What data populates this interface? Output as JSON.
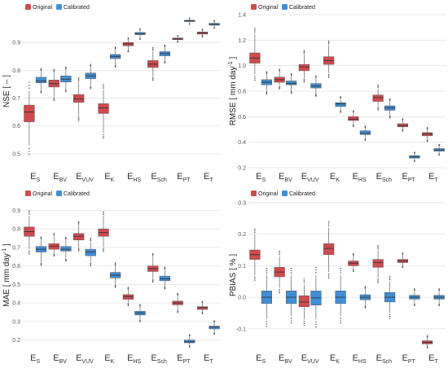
{
  "colors": {
    "original": "#d04a4e",
    "calibrated": "#3f8fd6",
    "grid": "#e3e3e3",
    "whisker": "#666666",
    "median": "#333333"
  },
  "categories": [
    {
      "main": "E",
      "sub": "S"
    },
    {
      "main": "E",
      "sub": "BV"
    },
    {
      "main": "E",
      "sub": "VUV"
    },
    {
      "main": "E",
      "sub": "K"
    },
    {
      "main": "E",
      "sub": "HS"
    },
    {
      "main": "E",
      "sub": "Sch"
    },
    {
      "main": "E",
      "sub": "PT"
    },
    {
      "main": "E",
      "sub": "T"
    }
  ],
  "chart_data": [
    {
      "type": "box",
      "ylabel_main": "NSE [ – ]",
      "ylabel_sup": "",
      "ylim": [
        0.45,
        1.0
      ],
      "yticks": [
        0.5,
        0.6,
        0.7,
        0.8,
        0.9
      ],
      "tick_labels": [
        "0.5",
        "0.6",
        "0.7",
        "0.8",
        "0.9"
      ],
      "legend": [
        "Original",
        "Calibrated"
      ],
      "legend_position": "top-left",
      "series": [
        {
          "name": "Original",
          "boxes": [
            [
              0.53,
              0.615,
              0.65,
              0.675,
              0.725
            ],
            [
              0.705,
              0.74,
              0.752,
              0.765,
              0.79
            ],
            [
              0.635,
              0.685,
              0.697,
              0.713,
              0.758
            ],
            [
              0.575,
              0.645,
              0.665,
              0.68,
              0.73
            ],
            [
              0.873,
              0.888,
              0.895,
              0.9,
              0.91
            ],
            [
              0.778,
              0.81,
              0.822,
              0.835,
              0.868
            ],
            [
              0.905,
              0.91,
              0.913,
              0.916,
              0.922
            ],
            [
              0.925,
              0.93,
              0.934,
              0.938,
              0.943
            ]
          ]
        },
        {
          "name": "Calibrated",
          "boxes": [
            [
              0.73,
              0.755,
              0.762,
              0.775,
              0.795
            ],
            [
              0.735,
              0.758,
              0.768,
              0.78,
              0.8
            ],
            [
              0.745,
              0.77,
              0.78,
              0.79,
              0.81
            ],
            [
              0.82,
              0.842,
              0.85,
              0.857,
              0.875
            ],
            [
              0.915,
              0.928,
              0.932,
              0.936,
              0.945
            ],
            [
              0.835,
              0.852,
              0.86,
              0.867,
              0.882
            ],
            [
              0.968,
              0.975,
              0.978,
              0.98,
              0.985
            ],
            [
              0.955,
              0.962,
              0.965,
              0.969,
              0.975
            ]
          ]
        }
      ]
    },
    {
      "type": "box",
      "ylabel_main": "RMSE [ mm day",
      "ylabel_sup": "-1",
      "ylabel_end": " ]",
      "ylim": [
        0.2,
        1.4
      ],
      "yticks": [
        0.2,
        0.4,
        0.6,
        0.8,
        1.0,
        1.2,
        1.4
      ],
      "tick_labels": [
        "0.2",
        "0.4",
        "0.6",
        "0.8",
        "1.0",
        "1.2",
        "1.4"
      ],
      "legend": [
        "Original",
        "Calibrated"
      ],
      "legend_position": "top-left",
      "series": [
        {
          "name": "Original",
          "boxes": [
            [
              0.93,
              1.02,
              1.06,
              1.1,
              1.25
            ],
            [
              0.84,
              0.87,
              0.89,
              0.91,
              0.95
            ],
            [
              0.9,
              0.96,
              0.99,
              1.01,
              1.09
            ],
            [
              0.94,
              1.01,
              1.04,
              1.07,
              1.16
            ],
            [
              0.54,
              0.57,
              0.58,
              0.6,
              0.63
            ],
            [
              0.68,
              0.72,
              0.75,
              0.77,
              0.82
            ],
            [
              0.5,
              0.52,
              0.53,
              0.545,
              0.57
            ],
            [
              0.42,
              0.45,
              0.465,
              0.475,
              0.5
            ]
          ]
        },
        {
          "name": "Calibrated",
          "boxes": [
            [
              0.8,
              0.85,
              0.87,
              0.89,
              0.93
            ],
            [
              0.8,
              0.85,
              0.86,
              0.88,
              0.92
            ],
            [
              0.78,
              0.825,
              0.84,
              0.86,
              0.9
            ],
            [
              0.65,
              0.68,
              0.7,
              0.71,
              0.74
            ],
            [
              0.43,
              0.46,
              0.47,
              0.49,
              0.51
            ],
            [
              0.61,
              0.65,
              0.67,
              0.685,
              0.72
            ],
            [
              0.26,
              0.275,
              0.285,
              0.295,
              0.31
            ],
            [
              0.31,
              0.33,
              0.34,
              0.35,
              0.37
            ]
          ]
        }
      ]
    },
    {
      "type": "box",
      "ylabel_main": "MAE [ mm day",
      "ylabel_sup": "-1",
      "ylabel_end": " ]",
      "ylim": [
        0.15,
        0.95
      ],
      "yticks": [
        0.2,
        0.3,
        0.4,
        0.5,
        0.6,
        0.7,
        0.8,
        0.9
      ],
      "tick_labels": [
        "0.2",
        "0.3",
        "0.4",
        "0.5",
        "0.6",
        "0.7",
        "0.8",
        "0.9"
      ],
      "legend": [
        "Original",
        "Calibrated"
      ],
      "legend_position": "top-left",
      "series": [
        {
          "name": "Original",
          "boxes": [
            [
              0.69,
              0.76,
              0.785,
              0.81,
              0.87
            ],
            [
              0.67,
              0.69,
              0.705,
              0.72,
              0.76
            ],
            [
              0.7,
              0.74,
              0.76,
              0.775,
              0.82
            ],
            [
              0.7,
              0.76,
              0.78,
              0.8,
              0.87
            ],
            [
              0.4,
              0.42,
              0.435,
              0.445,
              0.47
            ],
            [
              0.53,
              0.57,
              0.585,
              0.6,
              0.65
            ],
            [
              0.36,
              0.39,
              0.4,
              0.41,
              0.44
            ],
            [
              0.35,
              0.365,
              0.375,
              0.38,
              0.4
            ]
          ]
        },
        {
          "name": "Calibrated",
          "boxes": [
            [
              0.62,
              0.675,
              0.69,
              0.705,
              0.74
            ],
            [
              0.64,
              0.68,
              0.69,
              0.705,
              0.74
            ],
            [
              0.62,
              0.655,
              0.675,
              0.69,
              0.73
            ],
            [
              0.5,
              0.535,
              0.55,
              0.565,
              0.6
            ],
            [
              0.31,
              0.335,
              0.345,
              0.355,
              0.38
            ],
            [
              0.49,
              0.52,
              0.53,
              0.545,
              0.58
            ],
            [
              0.17,
              0.185,
              0.19,
              0.2,
              0.22
            ],
            [
              0.24,
              0.26,
              0.27,
              0.275,
              0.295
            ]
          ]
        }
      ]
    },
    {
      "type": "box",
      "ylabel_main": "PBIAS [ % ]",
      "ylabel_sup": "",
      "ylim": [
        -0.165,
        0.305
      ],
      "yticks": [
        -0.1,
        0.0,
        0.1,
        0.2,
        0.3
      ],
      "tick_labels": [
        "-0.1",
        "0.0",
        "0.1",
        "0.2",
        "0.3"
      ],
      "legend": [
        "Original",
        "Calibrated"
      ],
      "legend_position": "top-left",
      "series": [
        {
          "name": "Original",
          "boxes": [
            [
              0.07,
              0.12,
              0.135,
              0.15,
              0.2
            ],
            [
              0.03,
              0.065,
              0.08,
              0.095,
              0.13
            ],
            [
              -0.07,
              -0.03,
              -0.015,
              0.005,
              0.04
            ],
            [
              0.08,
              0.135,
              0.155,
              0.17,
              0.22
            ],
            [
              0.09,
              0.1,
              0.108,
              0.115,
              0.13
            ],
            [
              0.06,
              0.095,
              0.11,
              0.12,
              0.15
            ],
            [
              0.1,
              0.11,
              0.115,
              0.12,
              0.135
            ],
            [
              -0.155,
              -0.148,
              -0.143,
              -0.138,
              -0.128
            ]
          ]
        },
        {
          "name": "Calibrated",
          "boxes": [
            [
              -0.07,
              -0.02,
              0.0,
              0.02,
              0.07
            ],
            [
              -0.06,
              -0.02,
              0.0,
              0.02,
              0.07
            ],
            [
              -0.07,
              -0.025,
              -0.002,
              0.02,
              0.07
            ],
            [
              -0.06,
              -0.02,
              0.0,
              0.02,
              0.07
            ],
            [
              -0.025,
              -0.008,
              0.0,
              0.008,
              0.025
            ],
            [
              -0.05,
              -0.015,
              0.0,
              0.015,
              0.05
            ],
            [
              -0.02,
              -0.006,
              0.0,
              0.006,
              0.02
            ],
            [
              -0.02,
              -0.006,
              0.0,
              0.006,
              0.02
            ]
          ]
        }
      ]
    }
  ]
}
